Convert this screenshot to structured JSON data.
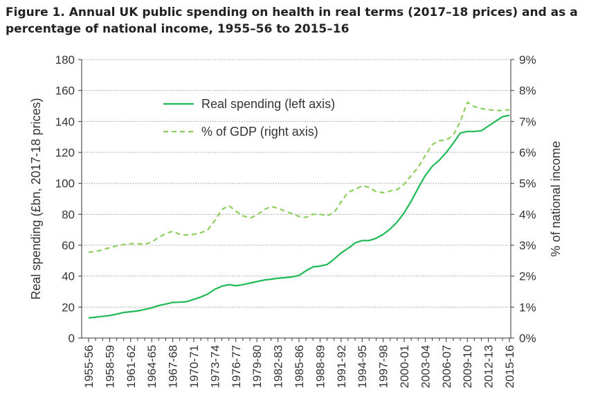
{
  "title_line1": "Figure 1. Annual UK public spending on health in real terms (2017–18 prices) and as a",
  "title_line2": "percentage of national income, 1955–56 to 2015–16",
  "chart_data": {
    "type": "line",
    "title": "Figure 1. Annual UK public spending on health in real terms (2017–18 prices) and as a percentage of national income, 1955–56 to 2015–16",
    "ylabel": "Real spending (£bn, 2017-18 prices)",
    "y2label": "% of national income",
    "ylim": [
      0,
      180
    ],
    "y2lim": [
      0,
      9
    ],
    "yticks": [
      "0",
      "20",
      "40",
      "60",
      "80",
      "100",
      "120",
      "140",
      "160",
      "180"
    ],
    "y2ticks": [
      "0%",
      "1%",
      "2%",
      "3%",
      "4%",
      "5%",
      "6%",
      "7%",
      "8%",
      "9%"
    ],
    "grid": "horizontal-dotted",
    "legend_position": "top-left-inside",
    "x_tick_labels": [
      "1955-56",
      "1958-59",
      "1961-62",
      "1964-65",
      "1967-68",
      "1970-71",
      "1973-74",
      "1976-77",
      "1979-80",
      "1982-83",
      "1985-86",
      "1988-89",
      "1991-92",
      "1994-95",
      "1997-98",
      "2000-01",
      "2003-04",
      "2006-07",
      "2009-10",
      "2012-13",
      "2015-16"
    ],
    "x_start_year": 1955,
    "x_end_year": 2015,
    "series": [
      {
        "name": "Real spending (left axis)",
        "axis": "left",
        "color": "#1db954",
        "style": "solid",
        "values": [
          13,
          13.5,
          14,
          14.5,
          15.5,
          16.5,
          17,
          17.5,
          18.5,
          19.5,
          21,
          22,
          23,
          23.2,
          23.5,
          25,
          26.5,
          28.5,
          31.5,
          33.5,
          34.5,
          33.8,
          34.5,
          35.5,
          36.5,
          37.5,
          38,
          38.7,
          39,
          39.5,
          40.5,
          43.5,
          46,
          46.5,
          47.5,
          51,
          55,
          58,
          61.5,
          63,
          63,
          64.5,
          67,
          70.5,
          75,
          81,
          88.5,
          97,
          105,
          111,
          115,
          120,
          126,
          132.5,
          133.5,
          133.5,
          134,
          137,
          140,
          143,
          144
        ]
      },
      {
        "name": "% of GDP (right axis)",
        "axis": "right",
        "color": "#8ccf5a",
        "style": "dashed",
        "values": [
          2.77,
          2.8,
          2.85,
          2.92,
          2.98,
          3.02,
          3.05,
          3.05,
          3.03,
          3.1,
          3.25,
          3.38,
          3.45,
          3.35,
          3.33,
          3.35,
          3.4,
          3.5,
          3.8,
          4.15,
          4.28,
          4.1,
          3.95,
          3.88,
          3.97,
          4.15,
          4.25,
          4.2,
          4.1,
          4.02,
          3.93,
          3.9,
          4.0,
          4.0,
          3.95,
          4.05,
          4.4,
          4.72,
          4.8,
          4.92,
          4.87,
          4.73,
          4.7,
          4.75,
          4.8,
          4.98,
          5.25,
          5.52,
          5.9,
          6.25,
          6.38,
          6.4,
          6.55,
          7.0,
          7.62,
          7.48,
          7.42,
          7.38,
          7.36,
          7.35,
          7.38
        ]
      }
    ]
  }
}
